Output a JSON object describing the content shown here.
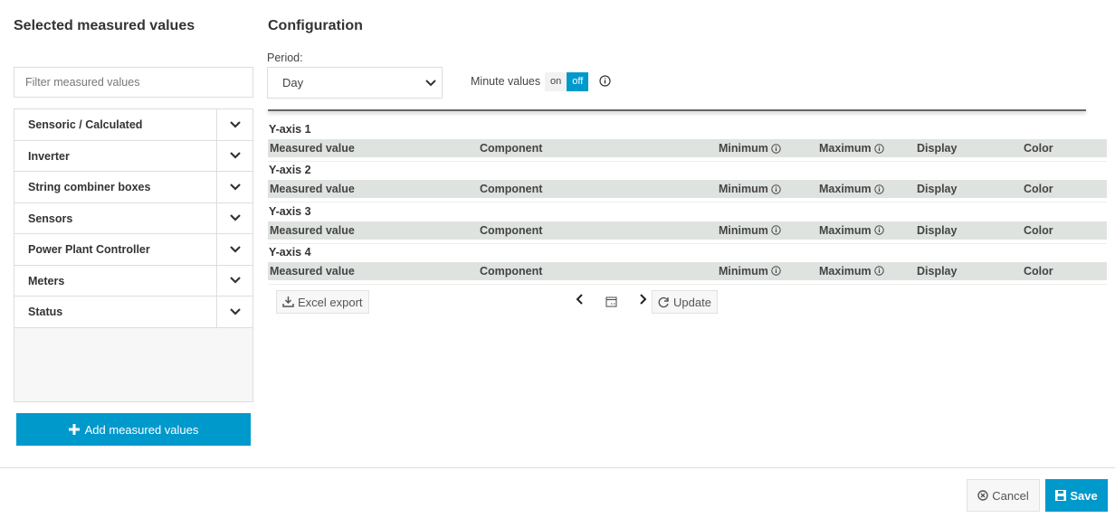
{
  "left": {
    "title": "Selected measured values",
    "filter_placeholder": "Filter measured values",
    "categories": [
      "Sensoric / Calculated",
      "Inverter",
      "String combiner boxes",
      "Sensors",
      "Power Plant Controller",
      "Meters",
      "Status"
    ],
    "add_label": "Add measured values"
  },
  "config": {
    "title": "Configuration",
    "period_label": "Period:",
    "period_value": "Day",
    "minute_values_label": "Minute values",
    "toggle_on": "on",
    "toggle_off": "off",
    "toggle_state": "off",
    "axes": [
      {
        "label": "Y-axis 1"
      },
      {
        "label": "Y-axis 2"
      },
      {
        "label": "Y-axis 3"
      },
      {
        "label": "Y-axis 4"
      }
    ],
    "columns": {
      "measured": "Measured value",
      "component": "Component",
      "minimum": "Minimum",
      "maximum": "Maximum",
      "display": "Display",
      "color": "Color"
    },
    "excel_label": "Excel export",
    "update_label": "Update"
  },
  "footer": {
    "cancel": "Cancel",
    "save": "Save"
  },
  "colors": {
    "accent": "#0099cc",
    "header_bg": "#dfe3e0"
  }
}
